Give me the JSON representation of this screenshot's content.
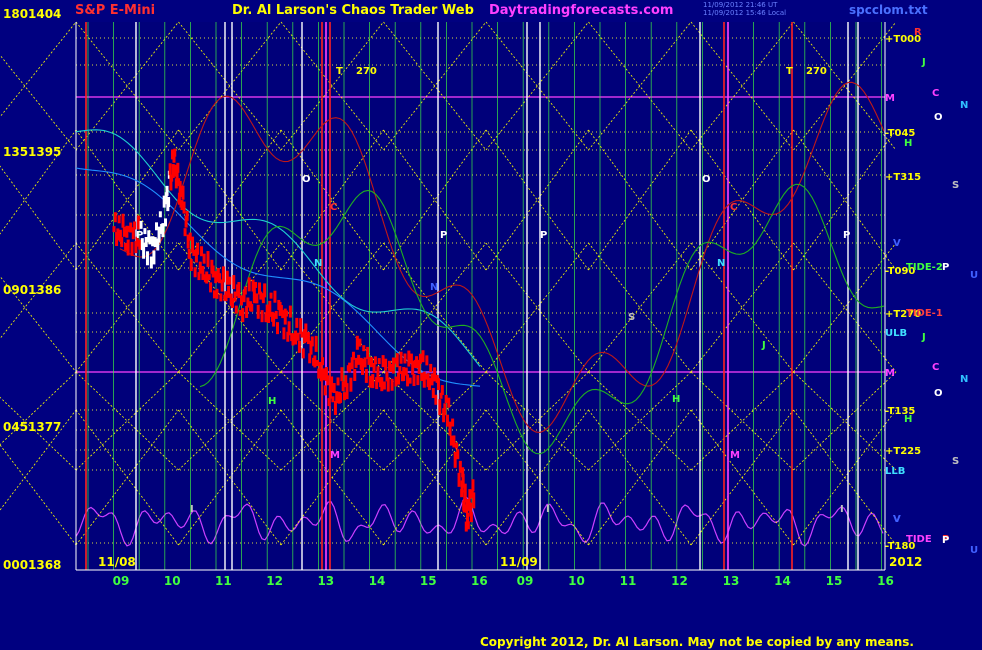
{
  "header": {
    "instrument": "S&P E-Mini",
    "title": "Dr. Al Larson's Chaos Trader Web",
    "site": "Daytradingforecasts.com",
    "timestamp_line1": "11/09/2012 21:46 UT",
    "timestamp_line2": "11/09/2012 15:46 Local",
    "file": "spcclom.txt"
  },
  "copyright": "Copyright 2012, Dr. Al Larson. May not be copied by any means.",
  "colors": {
    "background": "#000080",
    "price_bar": "#ff0000",
    "grid_vertical": "#40ff40",
    "grid_diagonal": "#ffff00",
    "marker_m": "#ff40ff",
    "tide": "#cc40ff",
    "text": "#ffff00"
  },
  "chart_data": {
    "type": "line",
    "title": "S&P E-Mini",
    "y_ticks": [
      {
        "index": "180",
        "price": "1404"
      },
      {
        "index": "135",
        "price": "1395"
      },
      {
        "index": "090",
        "price": "1386"
      },
      {
        "index": "045",
        "price": "1377"
      },
      {
        "index": "000",
        "price": "1368"
      }
    ],
    "ylim": [
      1368,
      1404
    ],
    "x_ticks": [
      "09",
      "10",
      "11",
      "12",
      "13",
      "14",
      "15",
      "16",
      "09",
      "10",
      "11",
      "12",
      "13",
      "14",
      "15",
      "16"
    ],
    "date_labels": [
      "11/08",
      "11/09",
      "2012"
    ],
    "right_labels": [
      "+T000",
      "M",
      "-T045",
      "+T315",
      "-T090",
      "+T270",
      "ULB",
      "M",
      "-T135",
      "+T225",
      "LLB",
      "-T180"
    ],
    "tide_labels": [
      "TIDE-2",
      "TIDE-1",
      "TIDE"
    ],
    "planet_labels": [
      "R",
      "J",
      "C",
      "N",
      "O",
      "H",
      "S",
      "V",
      "P",
      "U",
      "P",
      "J",
      "C",
      "N",
      "O",
      "H",
      "S",
      "V",
      "P",
      "U"
    ],
    "annotations": [
      "T",
      "270",
      "T",
      "270"
    ],
    "field_markers": [
      "P",
      "O",
      "N",
      "C",
      "M",
      "H",
      "I",
      "P",
      "P",
      "N",
      "S",
      "I",
      "H",
      "O",
      "C",
      "N",
      "M",
      "J",
      "P",
      "I",
      "V"
    ],
    "price_series": [
      {
        "x": 0.0,
        "y": 1390.6
      },
      {
        "x": 0.25,
        "y": 1390.2
      },
      {
        "x": 0.5,
        "y": 1390.0
      },
      {
        "x": 0.75,
        "y": 1389.2
      },
      {
        "x": 1.0,
        "y": 1391.7
      },
      {
        "x": 1.15,
        "y": 1395.4
      },
      {
        "x": 1.3,
        "y": 1393.0
      },
      {
        "x": 1.5,
        "y": 1388.9
      },
      {
        "x": 1.75,
        "y": 1387.9
      },
      {
        "x": 2.0,
        "y": 1387.0
      },
      {
        "x": 2.25,
        "y": 1386.3
      },
      {
        "x": 2.5,
        "y": 1385.7
      },
      {
        "x": 2.75,
        "y": 1386.0
      },
      {
        "x": 3.0,
        "y": 1385.4
      },
      {
        "x": 3.25,
        "y": 1384.6
      },
      {
        "x": 3.5,
        "y": 1383.7
      },
      {
        "x": 3.75,
        "y": 1382.9
      },
      {
        "x": 4.0,
        "y": 1381.5
      },
      {
        "x": 4.25,
        "y": 1379.0
      },
      {
        "x": 4.5,
        "y": 1380.3
      },
      {
        "x": 4.75,
        "y": 1382.1
      },
      {
        "x": 5.0,
        "y": 1381.2
      },
      {
        "x": 5.25,
        "y": 1380.6
      },
      {
        "x": 5.5,
        "y": 1381.2
      },
      {
        "x": 5.75,
        "y": 1381.1
      },
      {
        "x": 6.0,
        "y": 1381.2
      },
      {
        "x": 6.25,
        "y": 1380.1
      },
      {
        "x": 6.5,
        "y": 1377.9
      },
      {
        "x": 6.75,
        "y": 1373.8
      },
      {
        "x": 6.85,
        "y": 1371.2
      },
      {
        "x": 7.0,
        "y": 1372.8
      }
    ]
  }
}
